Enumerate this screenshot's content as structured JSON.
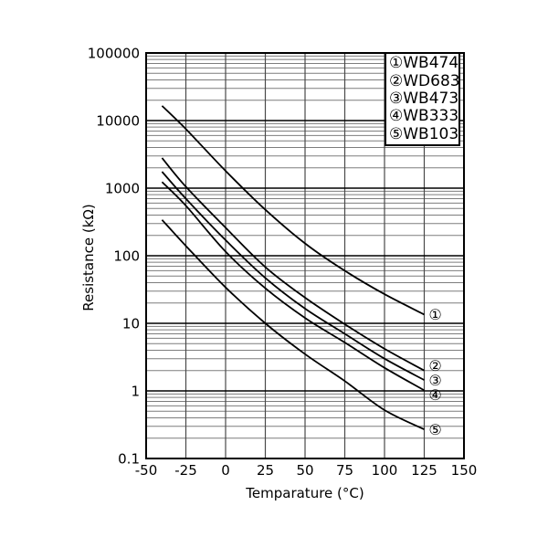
{
  "page": {
    "background": "#ffffff"
  },
  "chart_data": {
    "type": "line",
    "title": "",
    "xlabel": "Temparature (°C)",
    "ylabel": "Resistance (kΩ)",
    "x_scale": "linear",
    "y_scale": "log",
    "xlim": [
      -50,
      150
    ],
    "ylim": [
      0.1,
      100000
    ],
    "x_ticks": [
      -50,
      -25,
      0,
      25,
      50,
      75,
      100,
      125,
      150
    ],
    "x_tick_labels": [
      "-50",
      "-25",
      "0",
      "25",
      "50",
      "75",
      "100",
      "125",
      "150"
    ],
    "y_ticks": [
      0.1,
      1,
      10,
      100,
      1000,
      10000,
      100000
    ],
    "y_tick_labels": [
      "0.1",
      "1",
      "10",
      "100",
      "1000",
      "10000",
      "100000"
    ],
    "grid": "major black decades + gray log minors + vertical lines every 25°C",
    "legend_position": "top-right inside plot",
    "x": [
      -40,
      -25,
      0,
      25,
      50,
      75,
      100,
      125
    ],
    "series": [
      {
        "marker": "①",
        "name": "WB474",
        "values": [
          16500,
          7500,
          1800,
          480,
          152,
          60,
          27,
          13.5
        ]
      },
      {
        "marker": "②",
        "name": "WD683",
        "values": [
          2800,
          1050,
          260,
          68,
          24,
          9.7,
          4.2,
          2.0
        ]
      },
      {
        "marker": "③",
        "name": "WB473",
        "values": [
          1750,
          700,
          170,
          47,
          16.5,
          7.0,
          3.0,
          1.45
        ]
      },
      {
        "marker": "④",
        "name": "WB333",
        "values": [
          1230,
          550,
          115,
          33,
          12,
          5.2,
          2.2,
          1.02
        ]
      },
      {
        "marker": "⑤",
        "name": "WB103",
        "values": [
          340,
          140,
          34,
          10,
          3.5,
          1.4,
          0.52,
          0.27
        ]
      }
    ]
  },
  "colors": {
    "curve": "#000000",
    "grid_minor": "#7d7d7d",
    "grid_major": "#000000",
    "grid_vertical": "#4a4a4a",
    "plot_border": "#000000",
    "text": "#000000",
    "legend_border": "#000000",
    "background": "#ffffff"
  }
}
